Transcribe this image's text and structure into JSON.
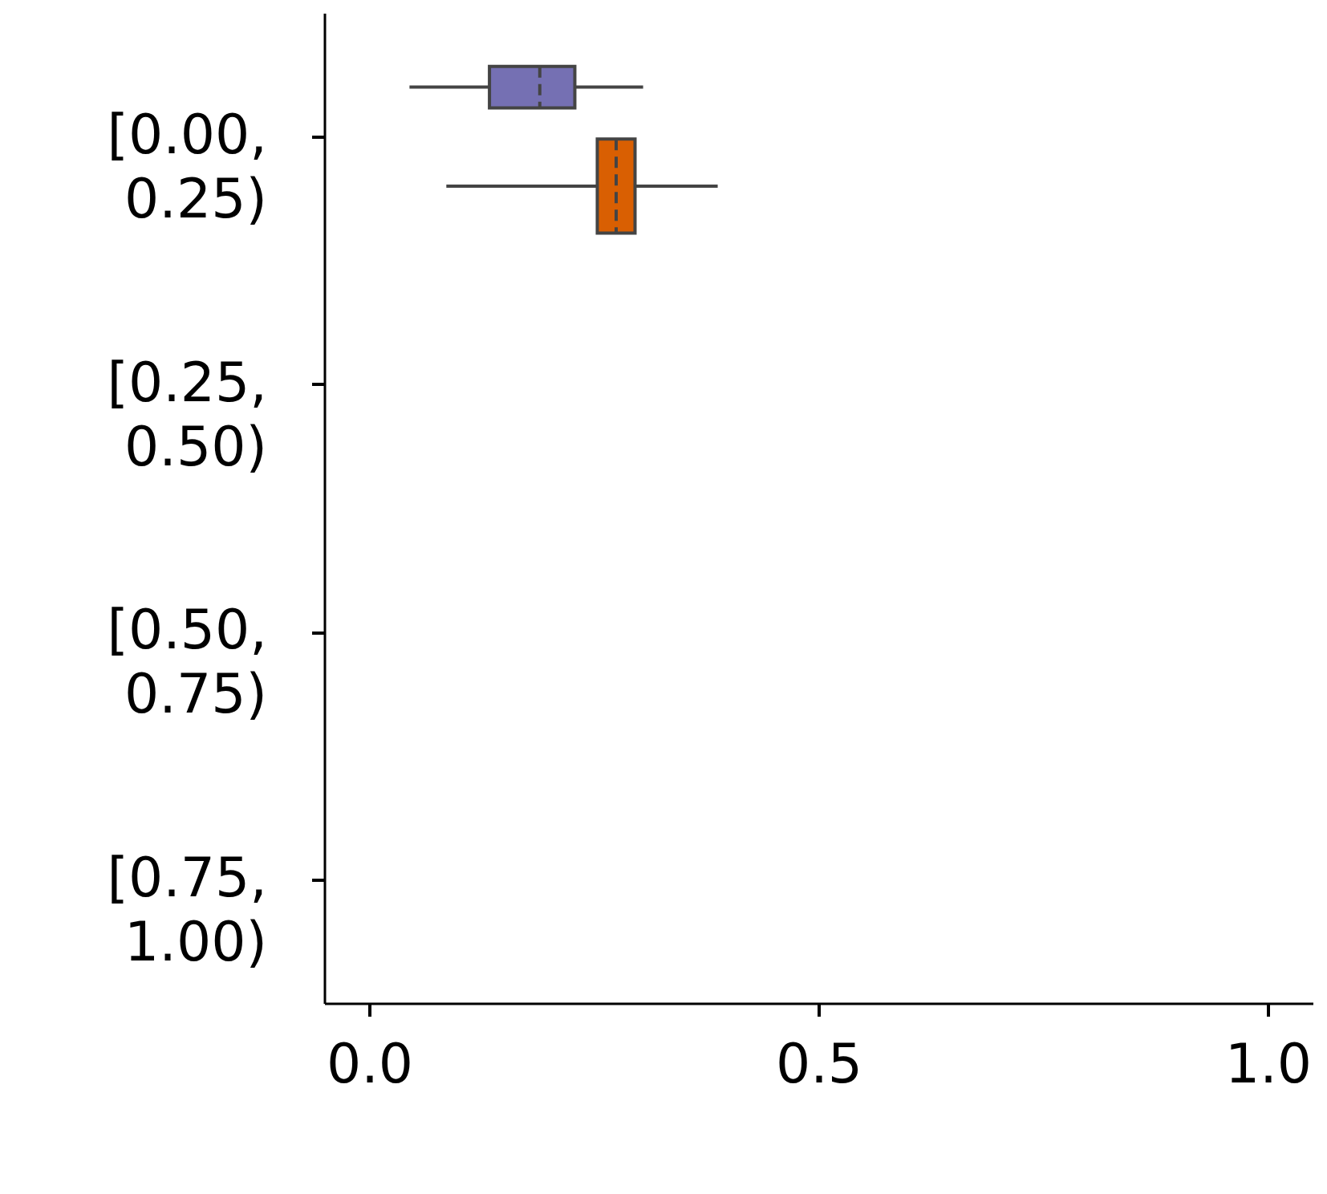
{
  "chart_data": {
    "type": "box",
    "orientation": "horizontal",
    "categories": [
      "[0.00, 0.25)",
      "[0.25, 0.50)",
      "[0.50, 0.75)",
      "[0.75, 1.00)"
    ],
    "series": [
      {
        "color": "#7570b3",
        "boxes": [
          {
            "low": 0.045,
            "q1": 0.134,
            "median": 0.19,
            "q3": 0.229,
            "high": 0.305
          },
          null,
          null,
          null
        ]
      },
      {
        "color": "#d95f02",
        "boxes": [
          {
            "low": 0.086,
            "q1": 0.254,
            "median": 0.275,
            "q3": 0.296,
            "high": 0.388
          },
          null,
          null,
          null
        ]
      }
    ],
    "xlim": [
      -0.05,
      1.05
    ],
    "xticks": [
      {
        "value": 0,
        "label": "0.0"
      },
      0.5,
      {
        "value": 1,
        "label": "1.0"
      }
    ]
  }
}
